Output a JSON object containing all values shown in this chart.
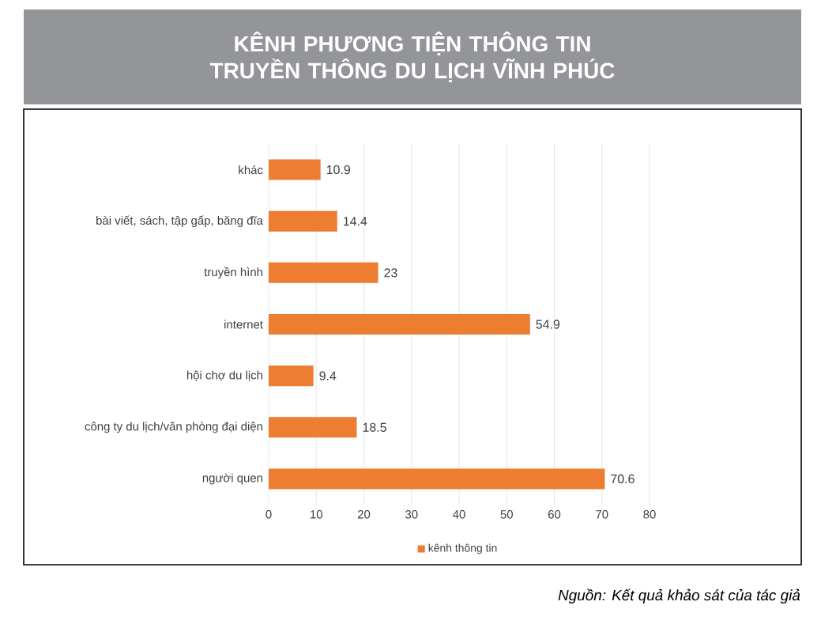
{
  "chart_data": {
    "type": "bar",
    "orientation": "horizontal",
    "title": "KÊNH PHƯƠNG TIỆN THÔNG TIN TRUYỀN THÔNG DU LỊCH VĨNH PHÚC",
    "categories": [
      "khác",
      "bài viết, sách, tập gấp, băng đĩa",
      "truyền hình",
      "internet",
      "hội chợ du lịch",
      "công ty du lịch/văn phòng đại diện",
      "người quen"
    ],
    "series": [
      {
        "name": "kênh thông tin",
        "color": "#ed7d31",
        "values": [
          10.9,
          14.4,
          23,
          54.9,
          9.4,
          18.5,
          70.6
        ]
      }
    ],
    "xlim": [
      0,
      80
    ],
    "xticks": [
      0,
      10,
      20,
      30,
      40,
      50,
      60,
      70,
      80
    ],
    "grid": "x",
    "legend": "bottom",
    "data_labels": true,
    "annotations": [
      "Nguồn: Kết quả khảo sát của tác giả"
    ]
  }
}
